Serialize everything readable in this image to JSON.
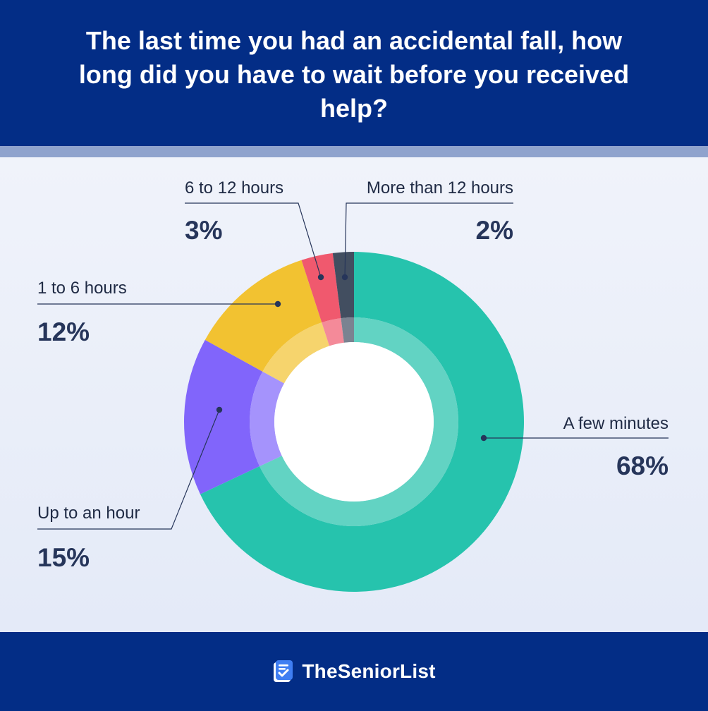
{
  "header": {
    "title": "The last time you had an accidental fall, how long did you have to wait before you received help?"
  },
  "chart_data": {
    "type": "pie",
    "title": "The last time you had an accidental fall, how long did you have to wait before you received help?",
    "donut": true,
    "start": "12 o'clock, clockwise",
    "slices": [
      {
        "label": "A few minutes",
        "value": 68,
        "display": "68%",
        "color": "#26c3ad",
        "inner_color": "#62d3c3"
      },
      {
        "label": "Up to an hour",
        "value": 15,
        "display": "15%",
        "color": "#8165fb",
        "inner_color": "#a593fc"
      },
      {
        "label": "1 to 6 hours",
        "value": 12,
        "display": "12%",
        "color": "#f2c231",
        "inner_color": "#f6d46d"
      },
      {
        "label": "6 to 12 hours",
        "value": 3,
        "display": "3%",
        "color": "#f0596e",
        "inner_color": "#f48a99"
      },
      {
        "label": "More than 12 hours",
        "value": 2,
        "display": "2%",
        "color": "#424e60",
        "inner_color": "#7b8391"
      }
    ],
    "leader_color": "#26355a"
  },
  "footer": {
    "brand": "TheSeniorList",
    "logo_icon": "checklist-icon"
  }
}
